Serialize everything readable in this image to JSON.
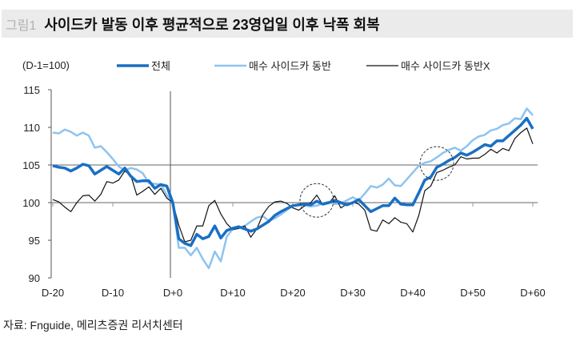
{
  "header": {
    "figure_label": "그림1",
    "title": "사이드카 발동 이후 평균적으로 23영업일 이후 낙폭 회복"
  },
  "source": "자료: Fnguide, 메리츠증권 리서치센터",
  "chart_data": {
    "type": "line",
    "title": "사이드카 발동 이후 평균적으로 23영업일 이후 낙폭 회복",
    "ylabel": "(D-1=100)",
    "ylim": [
      90,
      115
    ],
    "yticks": [
      90,
      95,
      100,
      105,
      110,
      115
    ],
    "xlim": [
      -20,
      60
    ],
    "xtick_values": [
      -20,
      -10,
      0,
      10,
      20,
      30,
      40,
      50,
      60
    ],
    "xtick_labels": [
      "D-20",
      "D-10",
      "D+0",
      "D+10",
      "D+20",
      "D+30",
      "D+40",
      "D+50",
      "D+60"
    ],
    "reference_lines": {
      "y": [
        100,
        105
      ],
      "x": [
        0
      ]
    },
    "annotations": [
      {
        "type": "dashed-circle",
        "x": 24,
        "y": 100.3
      },
      {
        "type": "dashed-circle",
        "x": 44,
        "y": 105.2
      }
    ],
    "legend_position": "top",
    "series": [
      {
        "name": "전체",
        "color": "#1a6fc4",
        "width": 3.5,
        "values": [
          104.9,
          104.7,
          104.6,
          104.2,
          104.6,
          105.1,
          104.9,
          103.8,
          104.3,
          104.8,
          104.3,
          103.8,
          104.6,
          103.5,
          102.8,
          102.9,
          102.9,
          101.9,
          102.4,
          102.2,
          100,
          95.2,
          94.6,
          94.3,
          95.8,
          95.2,
          95.5,
          96.9,
          95.3,
          96.3,
          96.6,
          96.8,
          96.5,
          96.2,
          96.5,
          97.0,
          97.5,
          98.3,
          98.8,
          99.2,
          99.6,
          99.7,
          99.8,
          99.7,
          100.2,
          99.8,
          100.0,
          100.3,
          100.0,
          99.7,
          100.0,
          100.4,
          99.6,
          98.8,
          99.2,
          99.6,
          99.6,
          100.6,
          99.8,
          99.7,
          99.7,
          101.3,
          103.0,
          103.4,
          104.7,
          105.1,
          105.6,
          106.0,
          106.6,
          106.3,
          106.7,
          107.2,
          107.7,
          107.5,
          108.2,
          108.2,
          108.9,
          109.6,
          110.3,
          111.2,
          109.8
        ]
      },
      {
        "name": "매수 사이드카 동반",
        "color": "#8fc3f0",
        "width": 2.5,
        "values": [
          109.3,
          109.2,
          109.7,
          109.4,
          108.9,
          109.3,
          108.9,
          107.3,
          107.5,
          106.7,
          105.8,
          104.8,
          104.3,
          104.6,
          104.4,
          103.9,
          102.6,
          102.5,
          102.4,
          101.0,
          100,
          94.0,
          94.0,
          93.0,
          94.0,
          92.5,
          91.3,
          93.5,
          92.2,
          95.5,
          96.5,
          96.6,
          96.9,
          97.5,
          98.0,
          98.2,
          97.6,
          97.9,
          98.4,
          99.0,
          99.6,
          99.8,
          99.6,
          99.5,
          99.6,
          99.9,
          100.1,
          99.8,
          99.9,
          100.3,
          100.7,
          100.3,
          101.2,
          102.2,
          102.0,
          102.4,
          103.2,
          102.3,
          102.2,
          103.1,
          104.0,
          104.9,
          105.3,
          105.5,
          106.0,
          106.6,
          107.0,
          107.3,
          106.9,
          107.5,
          108.3,
          108.8,
          109.0,
          109.6,
          109.8,
          110.3,
          110.5,
          111.2,
          111.1,
          112.5,
          111.6
        ]
      },
      {
        "name": "매수 사이드카 동반X",
        "color": "#111111",
        "width": 1.2,
        "values": [
          100.4,
          100.1,
          99.4,
          98.8,
          100.0,
          100.9,
          101.0,
          100.2,
          101.1,
          102.8,
          102.6,
          103.0,
          104.2,
          103.6,
          101.0,
          101.5,
          102.1,
          101.1,
          101.9,
          100.6,
          100,
          97.0,
          94.8,
          95.0,
          96.9,
          96.9,
          99.6,
          100.3,
          98.5,
          97.2,
          96.4,
          96.6,
          96.9,
          95.4,
          96.5,
          98.4,
          99.5,
          100.1,
          100.2,
          99.9,
          99.3,
          99.0,
          99.6,
          100.0,
          101.0,
          99.7,
          99.9,
          100.9,
          99.3,
          99.8,
          100.1,
          99.8,
          99.0,
          96.4,
          96.2,
          97.7,
          97.2,
          98.0,
          97.4,
          97.2,
          96.1,
          98.3,
          101.6,
          102.2,
          104.0,
          104.3,
          104.7,
          105.0,
          106.1,
          105.8,
          105.9,
          105.9,
          106.4,
          107.1,
          106.6,
          107.2,
          106.9,
          108.5,
          109.3,
          109.9,
          107.8
        ]
      }
    ]
  }
}
